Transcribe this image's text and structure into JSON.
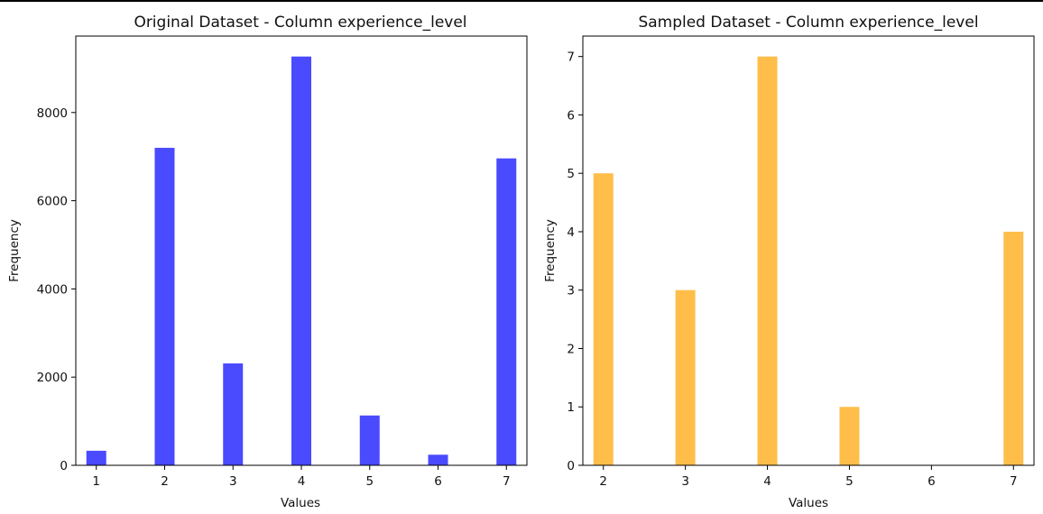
{
  "chart_data": [
    {
      "type": "bar",
      "title": "Original Dataset - Column experience_level",
      "xlabel": "Values",
      "ylabel": "Frequency",
      "x": [
        1,
        2,
        3,
        4,
        5,
        6,
        7
      ],
      "values": [
        330,
        7200,
        2310,
        9270,
        1130,
        240,
        6960
      ],
      "xticks": [
        "1",
        "2",
        "3",
        "4",
        "5",
        "6",
        "7"
      ],
      "yticks": [
        "0",
        "2000",
        "4000",
        "6000",
        "8000"
      ],
      "ytick_values": [
        0,
        2000,
        4000,
        6000,
        8000
      ],
      "xlim": [
        0.7,
        7.3
      ],
      "ylim": [
        0,
        9734
      ],
      "grid": false,
      "color": "#4a4aff"
    },
    {
      "type": "bar",
      "title": "Sampled Dataset - Column experience_level",
      "xlabel": "Values",
      "ylabel": "Frequency",
      "x": [
        2,
        3,
        4,
        5,
        7
      ],
      "values": [
        5,
        3,
        7,
        1,
        4
      ],
      "xticks": [
        "2",
        "3",
        "4",
        "5",
        "6",
        "7"
      ],
      "yticks": [
        "0",
        "1",
        "2",
        "3",
        "4",
        "5",
        "6",
        "7"
      ],
      "ytick_values": [
        0,
        1,
        2,
        3,
        4,
        5,
        6,
        7
      ],
      "xlim": [
        1.75,
        7.25
      ],
      "ylim": [
        0,
        7.35
      ],
      "grid": false,
      "color": "#ffbe4a"
    }
  ]
}
